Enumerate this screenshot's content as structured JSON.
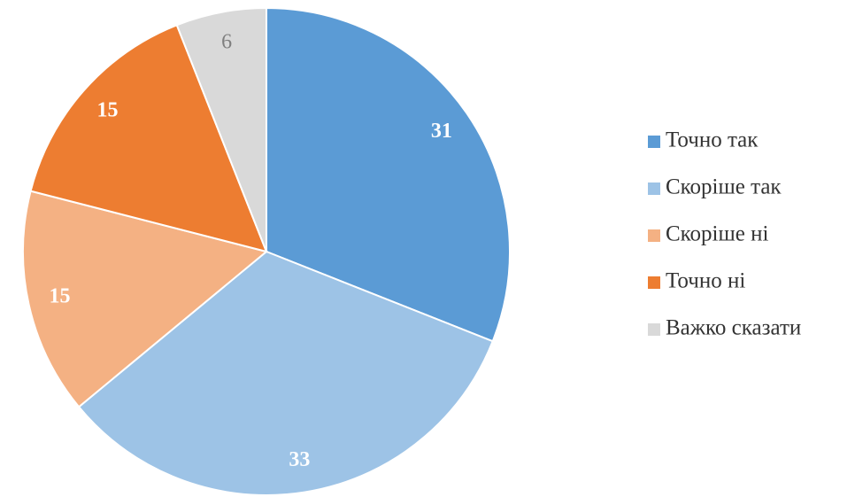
{
  "chart_data": {
    "type": "pie",
    "categories": [
      "Точно так",
      "Скоріше так",
      "Скоріше ні",
      "Точно ні",
      "Важко сказати"
    ],
    "values": [
      31,
      33,
      15,
      15,
      6
    ],
    "colors": [
      "#5b9bd5",
      "#9dc3e6",
      "#f4b183",
      "#ed7d31",
      "#d9d9d9"
    ],
    "value_label_colors": [
      "#ffffff",
      "#ffffff",
      "#ffffff",
      "#ffffff",
      "#7f7f7f"
    ],
    "legend": "right"
  }
}
